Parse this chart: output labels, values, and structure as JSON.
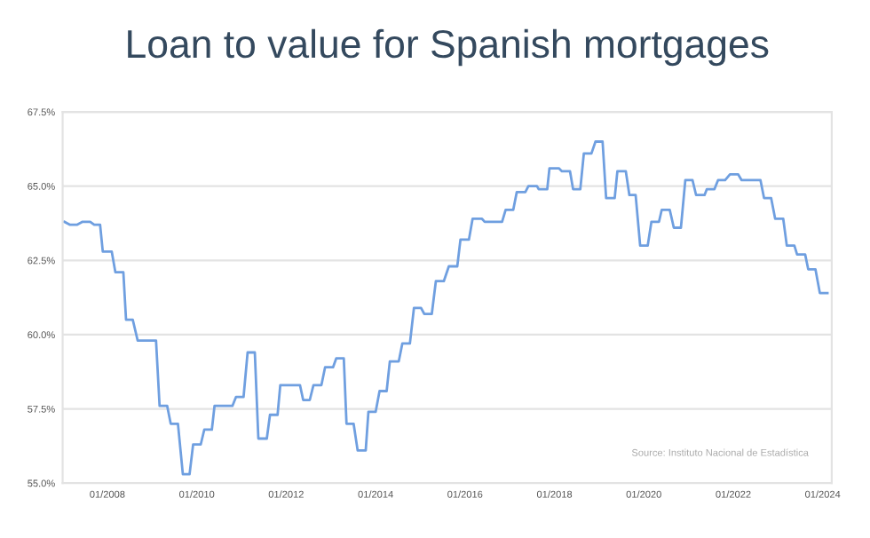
{
  "chart_data": {
    "type": "line",
    "title": "Loan to value for Spanish mortgages",
    "annotations": [
      "Source: Instituto Nacional de Estadística"
    ],
    "x": [
      "2007-01-15",
      "2007-03-03",
      "2007-04-27",
      "2007-06-13",
      "2007-08-14",
      "2007-09-16",
      "2007-11-03",
      "2007-11-25",
      "2008-02-06",
      "2008-03-07",
      "2008-05-11",
      "2008-06-02",
      "2008-07-27",
      "2008-09-05",
      "2009-02-02",
      "2009-03-03",
      "2009-05-04",
      "2009-06-02",
      "2009-07-31",
      "2009-09-09",
      "2009-11-03",
      "2009-12-02",
      "2010-02-02",
      "2010-03-03",
      "2010-05-04",
      "2010-05-26",
      "2010-10-19",
      "2010-11-17",
      "2011-01-18",
      "2011-02-20",
      "2011-04-20",
      "2011-05-19",
      "2011-07-27",
      "2011-08-22",
      "2011-10-23",
      "2011-11-14",
      "2012-04-23",
      "2012-05-19",
      "2012-07-12",
      "2012-08-11",
      "2012-10-15",
      "2012-11-14",
      "2013-01-18",
      "2013-02-13",
      "2013-04-16",
      "2013-05-08",
      "2013-07-05",
      "2013-08-07",
      "2013-10-12",
      "2013-11-03",
      "2014-01-01",
      "2014-02-02",
      "2014-04-01",
      "2014-04-27",
      "2014-07-09",
      "2014-08-07",
      "2014-10-08",
      "2014-11-10",
      "2015-01-07",
      "2015-02-02",
      "2015-04-05",
      "2015-05-08",
      "2015-07-12",
      "2015-08-22",
      "2015-10-30",
      "2015-11-25",
      "2016-02-02",
      "2016-03-03",
      "2016-05-19",
      "2016-06-10",
      "2016-10-30",
      "2016-11-28",
      "2017-01-29",
      "2017-02-27",
      "2017-05-08",
      "2017-06-02",
      "2017-08-11",
      "2017-08-25",
      "2017-11-03",
      "2017-11-21",
      "2018-02-06",
      "2018-03-03",
      "2018-05-08",
      "2018-06-02",
      "2018-07-31",
      "2018-08-29",
      "2018-10-30",
      "2018-12-02",
      "2019-01-29",
      "2019-02-27",
      "2019-05-08",
      "2019-05-30",
      "2019-08-07",
      "2019-09-05",
      "2019-10-26",
      "2019-12-02",
      "2020-02-02",
      "2020-03-03",
      "2020-05-04",
      "2020-05-26",
      "2020-07-31",
      "2020-09-02",
      "2020-10-30",
      "2020-12-05",
      "2021-02-02",
      "2021-03-03",
      "2021-05-11",
      "2021-05-30",
      "2021-07-31",
      "2021-08-29",
      "2021-10-26",
      "2021-12-05",
      "2022-02-09",
      "2022-03-10",
      "2022-08-11",
      "2022-09-09",
      "2022-11-06",
      "2022-12-09",
      "2023-02-13",
      "2023-03-14",
      "2023-05-15",
      "2023-06-06",
      "2023-08-11",
      "2023-09-05",
      "2023-11-03",
      "2023-12-09",
      "2024-02-09"
    ],
    "series": [
      {
        "color": "#6f9fe0",
        "values": [
          63.8,
          63.7,
          63.7,
          63.8,
          63.8,
          63.7,
          63.7,
          62.8,
          62.8,
          62.1,
          62.1,
          60.5,
          60.5,
          59.8,
          59.8,
          57.6,
          57.6,
          57.0,
          57.0,
          55.3,
          55.3,
          56.3,
          56.3,
          56.8,
          56.8,
          57.6,
          57.6,
          57.9,
          57.9,
          59.4,
          59.4,
          56.5,
          56.5,
          57.3,
          57.3,
          58.3,
          58.3,
          57.8,
          57.8,
          58.3,
          58.3,
          58.9,
          58.9,
          59.2,
          59.2,
          57.0,
          57.0,
          56.1,
          56.1,
          57.4,
          57.4,
          58.1,
          58.1,
          59.1,
          59.1,
          59.7,
          59.7,
          60.9,
          60.9,
          60.7,
          60.7,
          61.8,
          61.8,
          62.3,
          62.3,
          63.2,
          63.2,
          63.9,
          63.9,
          63.8,
          63.8,
          64.2,
          64.2,
          64.8,
          64.8,
          65.0,
          65.0,
          64.9,
          64.9,
          65.6,
          65.6,
          65.5,
          65.5,
          64.9,
          64.9,
          66.1,
          66.1,
          66.5,
          66.5,
          64.6,
          64.6,
          65.5,
          65.5,
          64.7,
          64.7,
          63.0,
          63.0,
          63.8,
          63.8,
          64.2,
          64.2,
          63.6,
          63.6,
          65.2,
          65.2,
          64.7,
          64.7,
          64.9,
          64.9,
          65.2,
          65.2,
          65.4,
          65.4,
          65.2,
          65.2,
          64.6,
          64.6,
          63.9,
          63.9,
          63.0,
          63.0,
          62.7,
          62.7,
          62.2,
          62.2,
          61.4,
          61.4
        ]
      }
    ],
    "xlim": [
      "2007-01-01",
      "2024-03-15"
    ],
    "xticks": [
      {
        "value": "2008-01-01",
        "label": "01/2008"
      },
      {
        "value": "2010-01-01",
        "label": "01/2010"
      },
      {
        "value": "2012-01-01",
        "label": "01/2012"
      },
      {
        "value": "2014-01-01",
        "label": "01/2014"
      },
      {
        "value": "2016-01-01",
        "label": "01/2016"
      },
      {
        "value": "2018-01-01",
        "label": "01/2018"
      },
      {
        "value": "2020-01-01",
        "label": "01/2020"
      },
      {
        "value": "2022-01-01",
        "label": "01/2022"
      },
      {
        "value": "2024-01-01",
        "label": "01/2024"
      }
    ],
    "ylim": [
      55,
      67.5
    ],
    "yticks": [
      {
        "value": 55,
        "label": "55.0%"
      },
      {
        "value": 57.5,
        "label": "57.5%"
      },
      {
        "value": 60,
        "label": "60.0%"
      },
      {
        "value": 62.5,
        "label": "62.5%"
      },
      {
        "value": 65,
        "label": "65.0%"
      },
      {
        "value": 67.5,
        "label": "67.5%"
      }
    ],
    "grid": "y",
    "marker": "none",
    "line_style": "solid"
  }
}
